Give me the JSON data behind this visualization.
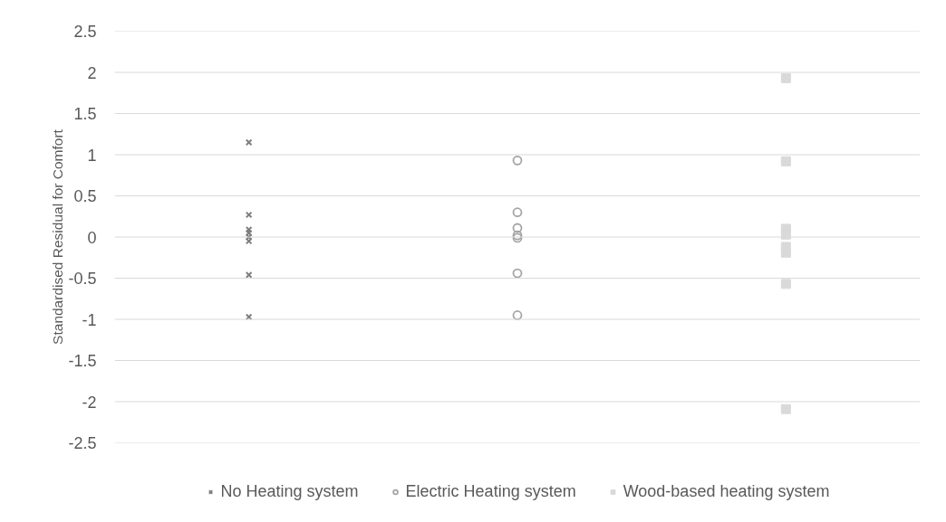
{
  "chart_data": {
    "type": "scatter",
    "ylabel": "Standardised Residual for Comfort",
    "categories": [
      null,
      null,
      null
    ],
    "ylim": [
      -2.5,
      2.5
    ],
    "yticks": [
      -2.5,
      -2,
      -1.5,
      -1,
      -0.5,
      0,
      0.5,
      1,
      1.5,
      2,
      2.5
    ],
    "grid": "y",
    "legend": "bottom",
    "series": [
      {
        "name": "No Heating system",
        "color": "#7f7f7f",
        "marker": "cross",
        "values": [
          1.15,
          null,
          null
        ]
      },
      {
        "color": "#7f7f7f",
        "marker": "cross",
        "values": [
          0.27,
          null,
          null
        ]
      },
      {
        "color": "#7f7f7f",
        "marker": "cross",
        "values": [
          0.09,
          null,
          null
        ]
      },
      {
        "color": "#7f7f7f",
        "marker": "cross",
        "values": [
          0.05,
          null,
          null
        ]
      },
      {
        "color": "#7f7f7f",
        "marker": "cross",
        "values": [
          0,
          null,
          null
        ]
      },
      {
        "color": "#7f7f7f",
        "marker": "cross",
        "values": [
          -0.05,
          null,
          null
        ]
      },
      {
        "color": "#7f7f7f",
        "marker": "cross",
        "values": [
          -0.46,
          null,
          null
        ]
      },
      {
        "color": "#7f7f7f",
        "marker": "cross",
        "values": [
          -0.97,
          null,
          null
        ]
      },
      {
        "name": "Electric Heating system",
        "color": "#a5a5a5",
        "marker": "circle",
        "values": [
          null,
          0.93,
          null
        ]
      },
      {
        "color": "#a5a5a5",
        "marker": "circle",
        "values": [
          null,
          0.3,
          null
        ]
      },
      {
        "color": "#a5a5a5",
        "marker": "circle",
        "values": [
          null,
          0.11,
          null
        ]
      },
      {
        "color": "#a5a5a5",
        "marker": "circle",
        "values": [
          null,
          0.02,
          null
        ]
      },
      {
        "color": "#a5a5a5",
        "marker": "circle",
        "values": [
          null,
          -0.01,
          null
        ]
      },
      {
        "color": "#a5a5a5",
        "marker": "circle",
        "values": [
          null,
          -0.44,
          null
        ]
      },
      {
        "color": "#a5a5a5",
        "marker": "circle",
        "values": [
          null,
          -0.95,
          null
        ]
      },
      {
        "name": "Wood-based heating system",
        "color": "#d9d9d9",
        "marker": "square",
        "values": [
          null,
          null,
          1.93
        ]
      },
      {
        "color": "#d9d9d9",
        "marker": "square",
        "values": [
          null,
          null,
          0.92
        ]
      },
      {
        "color": "#d9d9d9",
        "marker": "square",
        "values": [
          null,
          null,
          0.1
        ]
      },
      {
        "color": "#d9d9d9",
        "marker": "square",
        "values": [
          null,
          null,
          0.03
        ]
      },
      {
        "color": "#d9d9d9",
        "marker": "square",
        "values": [
          null,
          null,
          -0.12
        ]
      },
      {
        "color": "#d9d9d9",
        "marker": "square",
        "values": [
          null,
          null,
          -0.19
        ]
      },
      {
        "color": "#d9d9d9",
        "marker": "square",
        "values": [
          null,
          null,
          -0.57
        ]
      },
      {
        "color": "#d9d9d9",
        "marker": "square",
        "values": [
          null,
          null,
          -2.09
        ]
      }
    ]
  }
}
